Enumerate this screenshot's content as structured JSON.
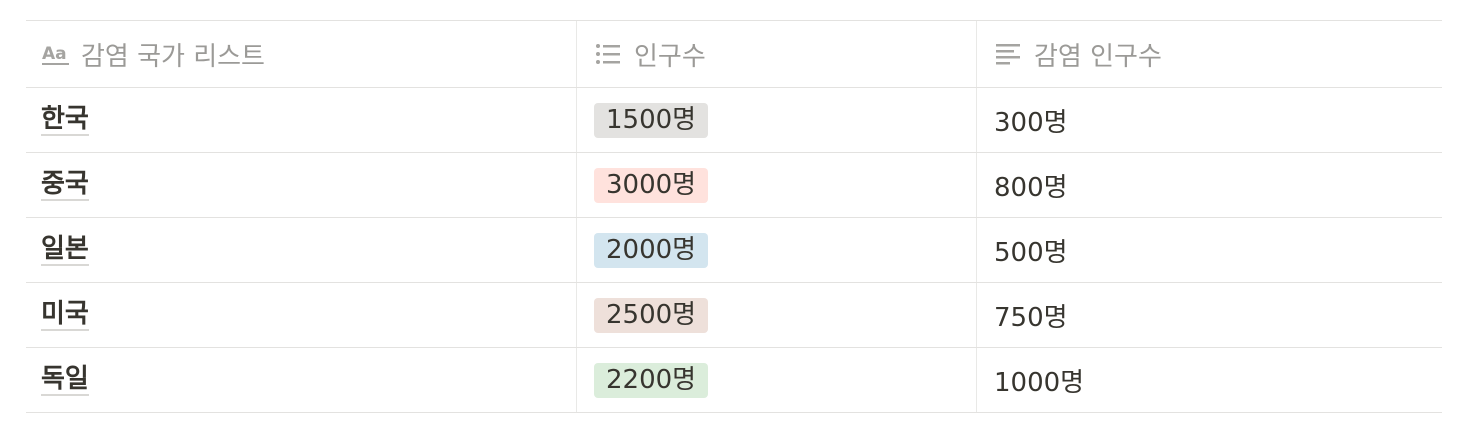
{
  "columns": {
    "name": {
      "label": "감염 국가 리스트",
      "icon": "text-aa-icon"
    },
    "population": {
      "label": "인구수",
      "icon": "list-icon"
    },
    "infected": {
      "label": "감염 인구수",
      "icon": "text-lines-icon"
    }
  },
  "rows": [
    {
      "name": "한국",
      "population": "1500명",
      "population_color": "#e3e2e0",
      "infected": "300명"
    },
    {
      "name": "중국",
      "population": "3000명",
      "population_color": "#ffe2dd",
      "infected": "800명"
    },
    {
      "name": "일본",
      "population": "2000명",
      "population_color": "#d3e5ef",
      "infected": "500명"
    },
    {
      "name": "미국",
      "population": "2500명",
      "population_color": "#eee0da",
      "infected": "750명"
    },
    {
      "name": "독일",
      "population": "2200명",
      "population_color": "#dbeddb",
      "infected": "1000명"
    }
  ]
}
